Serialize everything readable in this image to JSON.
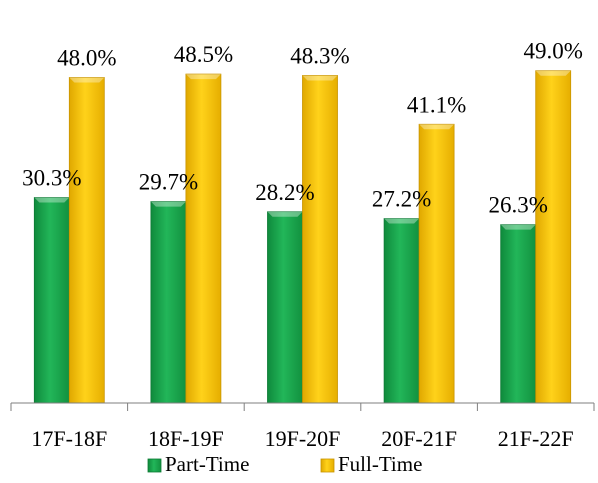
{
  "chart_data": {
    "type": "bar",
    "title": "",
    "xlabel": "",
    "ylabel": "",
    "categories": [
      "17F-18F",
      "18F-19F",
      "19F-20F",
      "20F-21F",
      "21F-22F"
    ],
    "series": [
      {
        "name": "Part-Time",
        "values": [
          30.3,
          29.7,
          28.2,
          27.2,
          26.3
        ],
        "labels": [
          "30.3%",
          "29.7%",
          "28.2%",
          "27.2%",
          "26.3%"
        ],
        "color": "#1aa54e"
      },
      {
        "name": "Full-Time",
        "values": [
          48.0,
          48.5,
          48.3,
          41.1,
          49.0
        ],
        "labels": [
          "48.0%",
          "48.5%",
          "48.3%",
          "41.1%",
          "49.0%"
        ],
        "color": "#f5c000"
      }
    ],
    "ylim": [
      0,
      55
    ],
    "grid": false,
    "legend": "bottom"
  }
}
